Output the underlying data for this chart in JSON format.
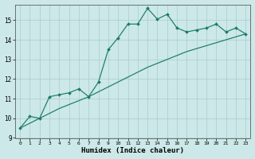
{
  "xlabel": "Humidex (Indice chaleur)",
  "background_color": "#cce8e8",
  "line_color": "#1a7a6a",
  "xlim": [
    -0.5,
    23.5
  ],
  "ylim": [
    9.0,
    15.8
  ],
  "x": [
    0,
    1,
    2,
    3,
    4,
    5,
    6,
    7,
    8,
    9,
    10,
    11,
    12,
    13,
    14,
    15,
    16,
    17,
    18,
    19,
    20,
    21,
    22,
    23
  ],
  "y_jagged": [
    9.5,
    10.1,
    10.0,
    11.1,
    11.2,
    11.3,
    11.5,
    11.1,
    11.85,
    13.5,
    14.1,
    14.8,
    14.8,
    15.6,
    15.05,
    15.3,
    14.6,
    14.4,
    14.5,
    14.6,
    14.8,
    14.4,
    14.6,
    14.3
  ],
  "y_trend": [
    9.5,
    9.75,
    10.0,
    10.25,
    10.5,
    10.7,
    10.9,
    11.1,
    11.35,
    11.6,
    11.85,
    12.1,
    12.35,
    12.6,
    12.8,
    13.0,
    13.2,
    13.4,
    13.55,
    13.7,
    13.85,
    14.0,
    14.15,
    14.3
  ],
  "yticks": [
    9,
    10,
    11,
    12,
    13,
    14,
    15
  ],
  "xticks": [
    0,
    1,
    2,
    3,
    4,
    5,
    6,
    7,
    8,
    9,
    10,
    11,
    12,
    13,
    14,
    15,
    16,
    17,
    18,
    19,
    20,
    21,
    22,
    23
  ]
}
